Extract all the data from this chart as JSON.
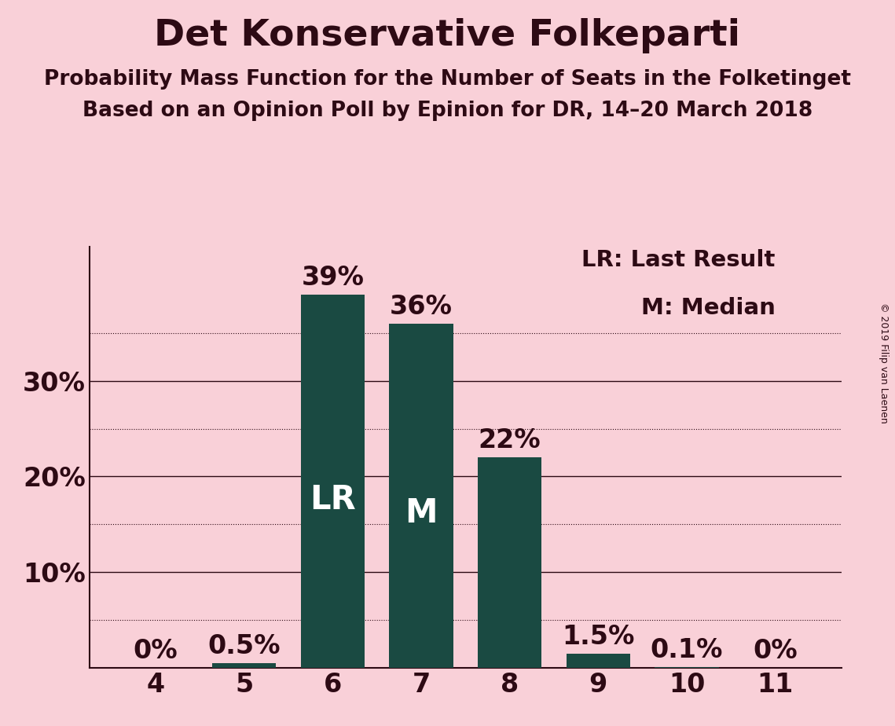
{
  "title": "Det Konservative Folkeparti",
  "subtitle1": "Probability Mass Function for the Number of Seats in the Folketinget",
  "subtitle2": "Based on an Opinion Poll by Epinion for DR, 14–20 March 2018",
  "copyright": "© 2019 Filip van Laenen",
  "categories": [
    4,
    5,
    6,
    7,
    8,
    9,
    10,
    11
  ],
  "values": [
    0.0,
    0.5,
    39.0,
    36.0,
    22.0,
    1.5,
    0.1,
    0.0
  ],
  "bar_labels": [
    "0%",
    "0.5%",
    "39%",
    "36%",
    "22%",
    "1.5%",
    "0.1%",
    "0%"
  ],
  "bar_color": "#1a4a42",
  "background_color": "#f9d0d8",
  "text_color": "#2d0a14",
  "label_inside_color": "#ffffff",
  "label_outside_color": "#2d0a14",
  "lr_bar_idx": 2,
  "median_bar_idx": 3,
  "ylim": [
    0,
    44
  ],
  "grid_color": "#2d0a14",
  "legend_lr": "LR: Last Result",
  "legend_m": "M: Median",
  "title_fontsize": 34,
  "subtitle_fontsize": 19,
  "tick_fontsize": 24,
  "bar_label_fontsize": 24,
  "inside_label_fontsize": 30,
  "legend_fontsize": 21,
  "copyright_fontsize": 9
}
